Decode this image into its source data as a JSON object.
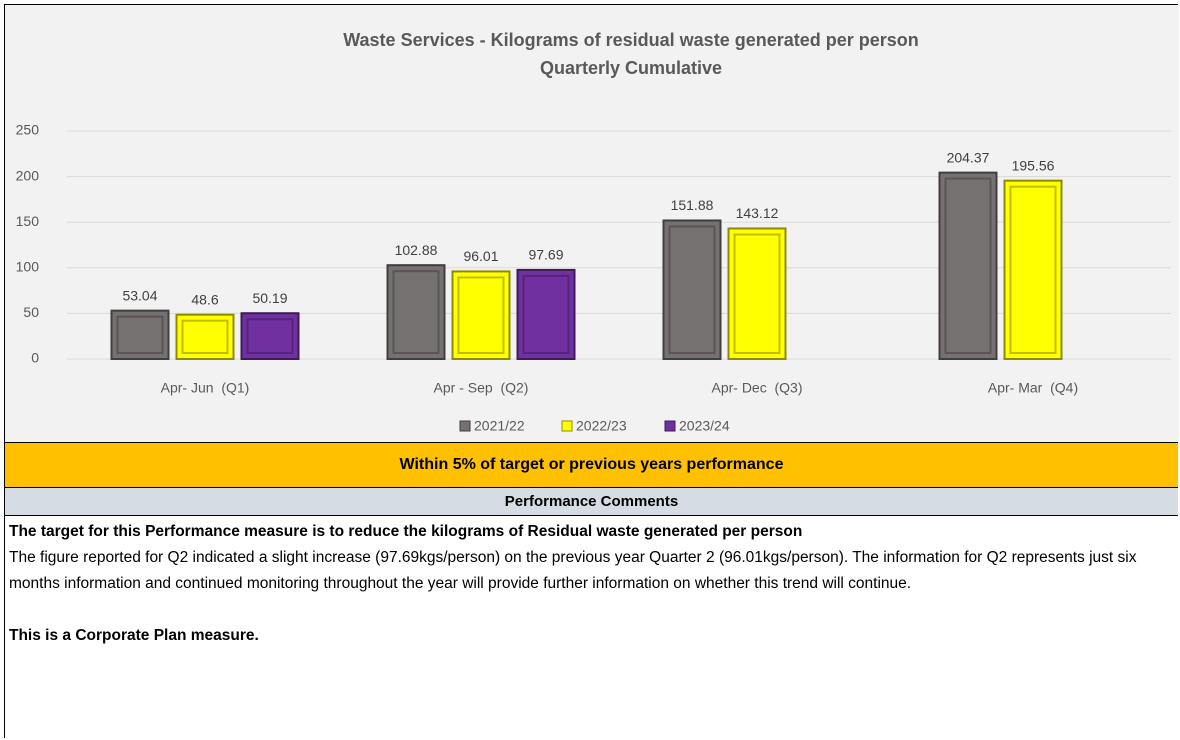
{
  "chart_data": {
    "type": "bar",
    "title": "Waste Services - Kilograms of residual waste generated per person",
    "subtitle": "Quarterly Cumulative",
    "categories": [
      "Apr- Jun  (Q1)",
      "Apr - Sep  (Q2)",
      "Apr- Dec  (Q3)",
      "Apr- Mar  (Q4)"
    ],
    "series": [
      {
        "name": "2021/22",
        "color": "#767171",
        "values": [
          53.04,
          102.88,
          151.88,
          204.37
        ]
      },
      {
        "name": "2022/23",
        "color": "#ffff00",
        "values": [
          48.6,
          96.01,
          143.12,
          195.56
        ]
      },
      {
        "name": "2023/24",
        "color": "#7030a0",
        "values": [
          50.19,
          97.69,
          null,
          null
        ]
      }
    ],
    "ylim": [
      0,
      250
    ],
    "yticks": [
      0,
      50,
      100,
      150,
      200,
      250
    ],
    "grid": true,
    "legend": "bottom"
  },
  "status": "Within 5% of target or previous years performance",
  "comments": {
    "heading": "Performance Comments",
    "lead": "The target for this Performance measure is to reduce the kilograms of Residual waste generated per person",
    "body": "The figure reported for Q2 indicated a slight increase (97.69kgs/person) on the previous year Quarter 2 (96.01kgs/person).  The information for Q2 represents just six months information and continued monitoring throughout the year will provide further information on whether this trend will continue.",
    "note": "This is a Corporate Plan measure."
  }
}
